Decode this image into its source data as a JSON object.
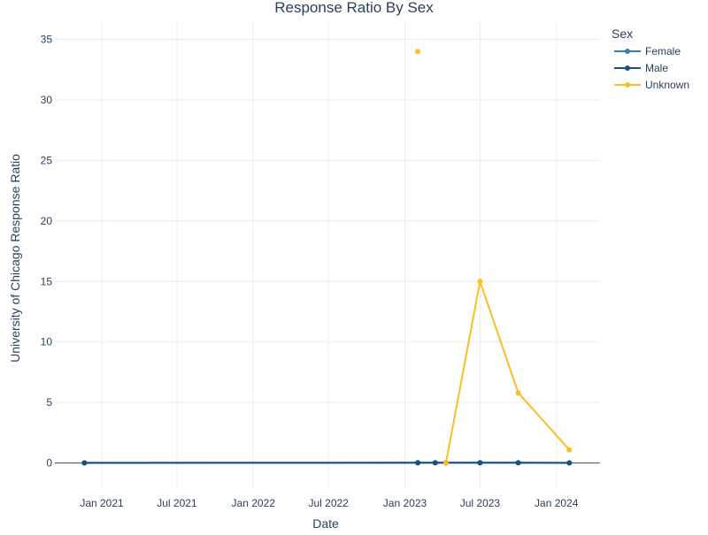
{
  "chart_data": {
    "type": "line",
    "title": "Response Ratio By Sex",
    "xlabel": "Date",
    "ylabel": "University of Chicago Response Ratio",
    "x_tick_labels": [
      "Jan 2021",
      "Jul 2021",
      "Jan 2022",
      "Jul 2022",
      "Jan 2023",
      "Jul 2023",
      "Jan 2024"
    ],
    "x_tick_dates": [
      "2021-01-01",
      "2021-07-01",
      "2022-01-01",
      "2022-07-01",
      "2023-01-01",
      "2023-07-01",
      "2024-01-01"
    ],
    "xlim": [
      "2020-09-10",
      "2024-04-15"
    ],
    "y_ticks": [
      0,
      5,
      10,
      15,
      20,
      25,
      30,
      35
    ],
    "ylim": [
      -2,
      36.5
    ],
    "grid": true,
    "legend_title": "Sex",
    "legend_position": "right",
    "series": [
      {
        "name": "Female",
        "color": "#3a7bbf",
        "points": [
          {
            "x": "2020-11-20",
            "y": 0.02
          },
          {
            "x": "2023-02-01",
            "y": 0.03
          },
          {
            "x": "2023-03-15",
            "y": 0.03
          },
          {
            "x": "2023-04-10",
            "y": 0.03
          },
          {
            "x": "2023-07-01",
            "y": 0.03
          },
          {
            "x": "2023-10-01",
            "y": 0.03
          },
          {
            "x": "2024-02-01",
            "y": 0.02
          }
        ]
      },
      {
        "name": "Male",
        "color": "#1c4f80",
        "points": [
          {
            "x": "2020-11-20",
            "y": 0.01
          },
          {
            "x": "2023-02-01",
            "y": 0.02
          },
          {
            "x": "2023-03-15",
            "y": 0.02
          },
          {
            "x": "2023-04-10",
            "y": 0.02
          },
          {
            "x": "2023-07-01",
            "y": 0.02
          },
          {
            "x": "2023-10-01",
            "y": 0.02
          },
          {
            "x": "2024-02-01",
            "y": 0.01
          }
        ]
      },
      {
        "name": "Unknown",
        "color": "#fbbf24",
        "points": [
          {
            "x": "2023-02-01",
            "y": 34
          },
          {
            "x": "2023-04-10",
            "y": 0
          },
          {
            "x": "2023-07-01",
            "y": 15
          },
          {
            "x": "2023-10-01",
            "y": 5.8
          },
          {
            "x": "2024-02-01",
            "y": 1.1
          }
        ],
        "segments": [
          [
            1,
            2,
            3,
            4
          ]
        ]
      }
    ]
  }
}
